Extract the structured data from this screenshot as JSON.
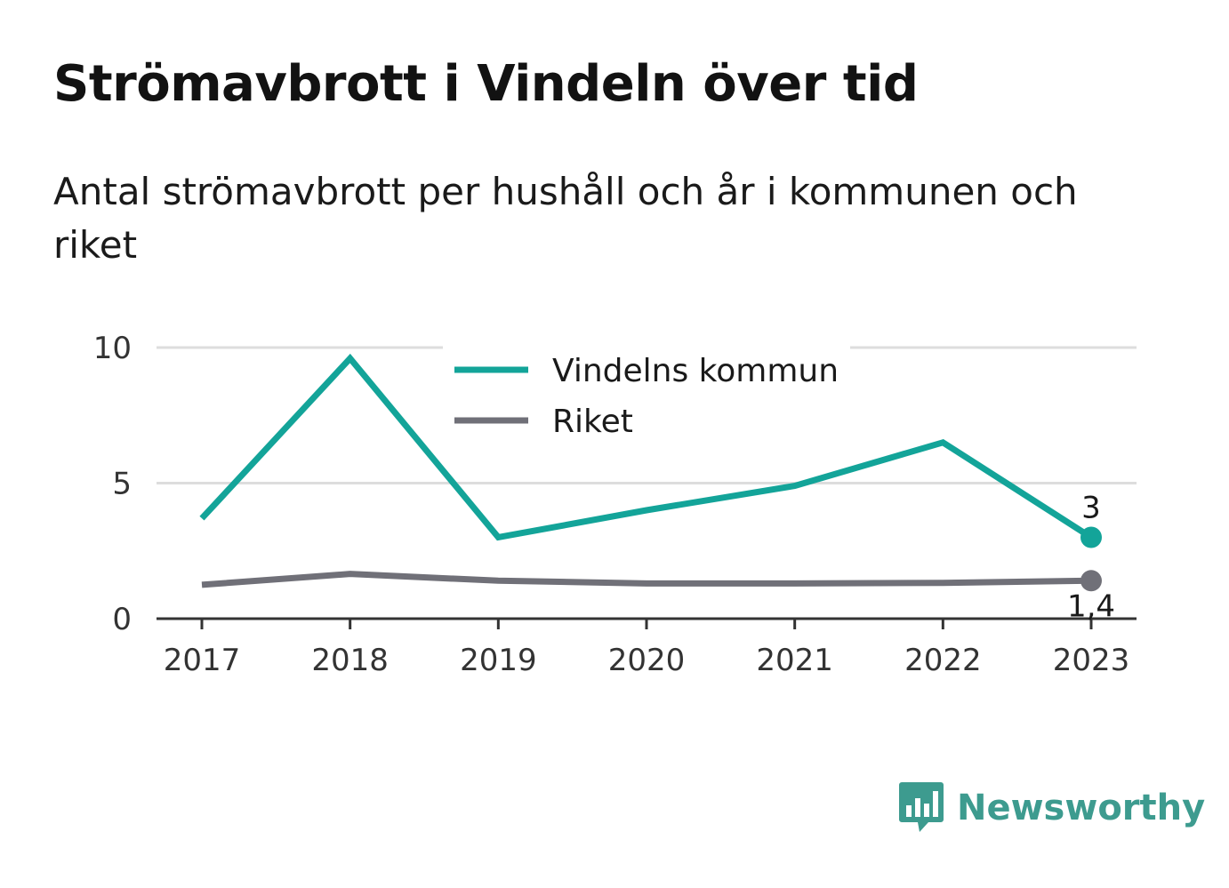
{
  "header": {
    "title": "Strömavbrott i Vindeln över tid",
    "subtitle": "Antal strömavbrott per hushåll och år i kommunen och riket"
  },
  "brand": {
    "name": "Newsworthy",
    "icon": "newsworthy-logo-icon"
  },
  "colors": {
    "vindeln": "#13a499",
    "riket": "#707078",
    "grid": "#dddddd",
    "axis": "#333333"
  },
  "chart_data": {
    "type": "line",
    "x": [
      "2017",
      "2018",
      "2019",
      "2020",
      "2021",
      "2022",
      "2023"
    ],
    "ylim": [
      0,
      10
    ],
    "yticks": [
      "0",
      "5",
      "10"
    ],
    "grid": true,
    "legend_position": "top-center",
    "series": [
      {
        "name": "Vindelns kommun",
        "color": "#13a499",
        "values": [
          3.7,
          9.6,
          3.0,
          4.0,
          4.9,
          6.5,
          3.0
        ],
        "end_label": "3"
      },
      {
        "name": "Riket",
        "color": "#707078",
        "values": [
          1.25,
          1.65,
          1.4,
          1.3,
          1.3,
          1.32,
          1.4
        ],
        "end_label": "1,4"
      }
    ]
  }
}
